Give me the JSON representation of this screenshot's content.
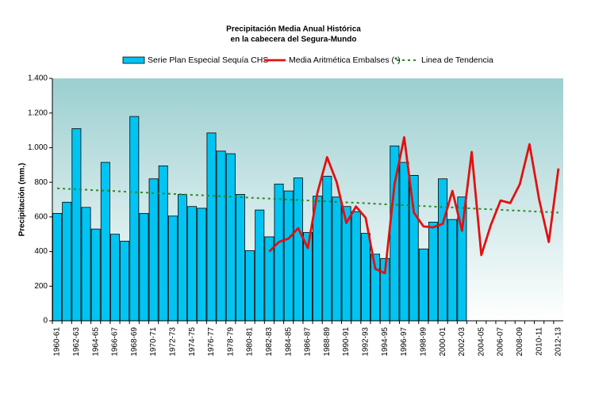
{
  "chart_data": {
    "type": "bar_line",
    "title": "Precipitación Media Anual Histórica",
    "subtitle": "en la cabecera del Segura-Mundo",
    "y_label": "Precipitación (mm.)",
    "categories": [
      "1960-61",
      null,
      "1962-63",
      null,
      "1964-65",
      null,
      "1966-67",
      null,
      "1968-69",
      null,
      "1970-71",
      null,
      "1972-73",
      null,
      "1974-75",
      null,
      "1976-77",
      null,
      "1978-79",
      null,
      "1980-81",
      null,
      "1982-83",
      null,
      "1984-85",
      null,
      "1986-87",
      null,
      "1988-89",
      null,
      "1990-91",
      null,
      "1992-93",
      null,
      "1994-95",
      null,
      "1996-97",
      null,
      "1998-99",
      null,
      "2000-01",
      null,
      "2002-03",
      null,
      "2004-05",
      null,
      "2006-07",
      null,
      "2008-09",
      null,
      "2010-11",
      null,
      "2012-13"
    ],
    "series": [
      {
        "name": "Serie Plan Especial Sequía CHS",
        "kind": "bar",
        "color": "#00c4f2",
        "values": [
          620,
          685,
          1110,
          655,
          530,
          915,
          500,
          460,
          1180,
          620,
          820,
          895,
          605,
          730,
          660,
          650,
          1085,
          980,
          965,
          730,
          405,
          640,
          485,
          790,
          750,
          825,
          510,
          720,
          835,
          715,
          660,
          630,
          505,
          385,
          360,
          1010,
          915,
          840,
          415,
          570,
          820,
          585,
          715,
          null,
          null,
          null,
          null,
          null,
          null,
          null,
          null,
          null,
          null
        ]
      },
      {
        "name": "Media Aritmética Embalses (*)",
        "kind": "line",
        "color": "#e31010",
        "values": [
          null,
          null,
          null,
          null,
          null,
          null,
          null,
          null,
          null,
          null,
          null,
          null,
          null,
          null,
          null,
          null,
          null,
          null,
          null,
          null,
          null,
          null,
          400,
          455,
          475,
          535,
          420,
          740,
          945,
          800,
          565,
          660,
          595,
          300,
          275,
          790,
          1060,
          625,
          545,
          540,
          560,
          750,
          520,
          975,
          380,
          555,
          695,
          680,
          790,
          1020,
          700,
          455,
          880
        ]
      },
      {
        "name": "Linea de Tendencia",
        "kind": "trend",
        "color": "#2a8a2a",
        "values": [
          765,
          762,
          760,
          757,
          754,
          752,
          749,
          746,
          743,
          741,
          738,
          735,
          733,
          730,
          727,
          725,
          722,
          719,
          717,
          714,
          711,
          708,
          706,
          703,
          700,
          698,
          695,
          692,
          690,
          687,
          684,
          682,
          679,
          676,
          673,
          671,
          668,
          665,
          663,
          660,
          657,
          655,
          652,
          649,
          646,
          644,
          641,
          638,
          636,
          633,
          630,
          628,
          625
        ]
      }
    ],
    "ylim": [
      0,
      1400
    ],
    "yticks": [
      0,
      200,
      400,
      600,
      800,
      {
        "value": 1000,
        "label": "1.000"
      },
      {
        "value": 1200,
        "label": "1.200"
      },
      {
        "value": 1400,
        "label": "1.400"
      }
    ],
    "grid": false
  }
}
